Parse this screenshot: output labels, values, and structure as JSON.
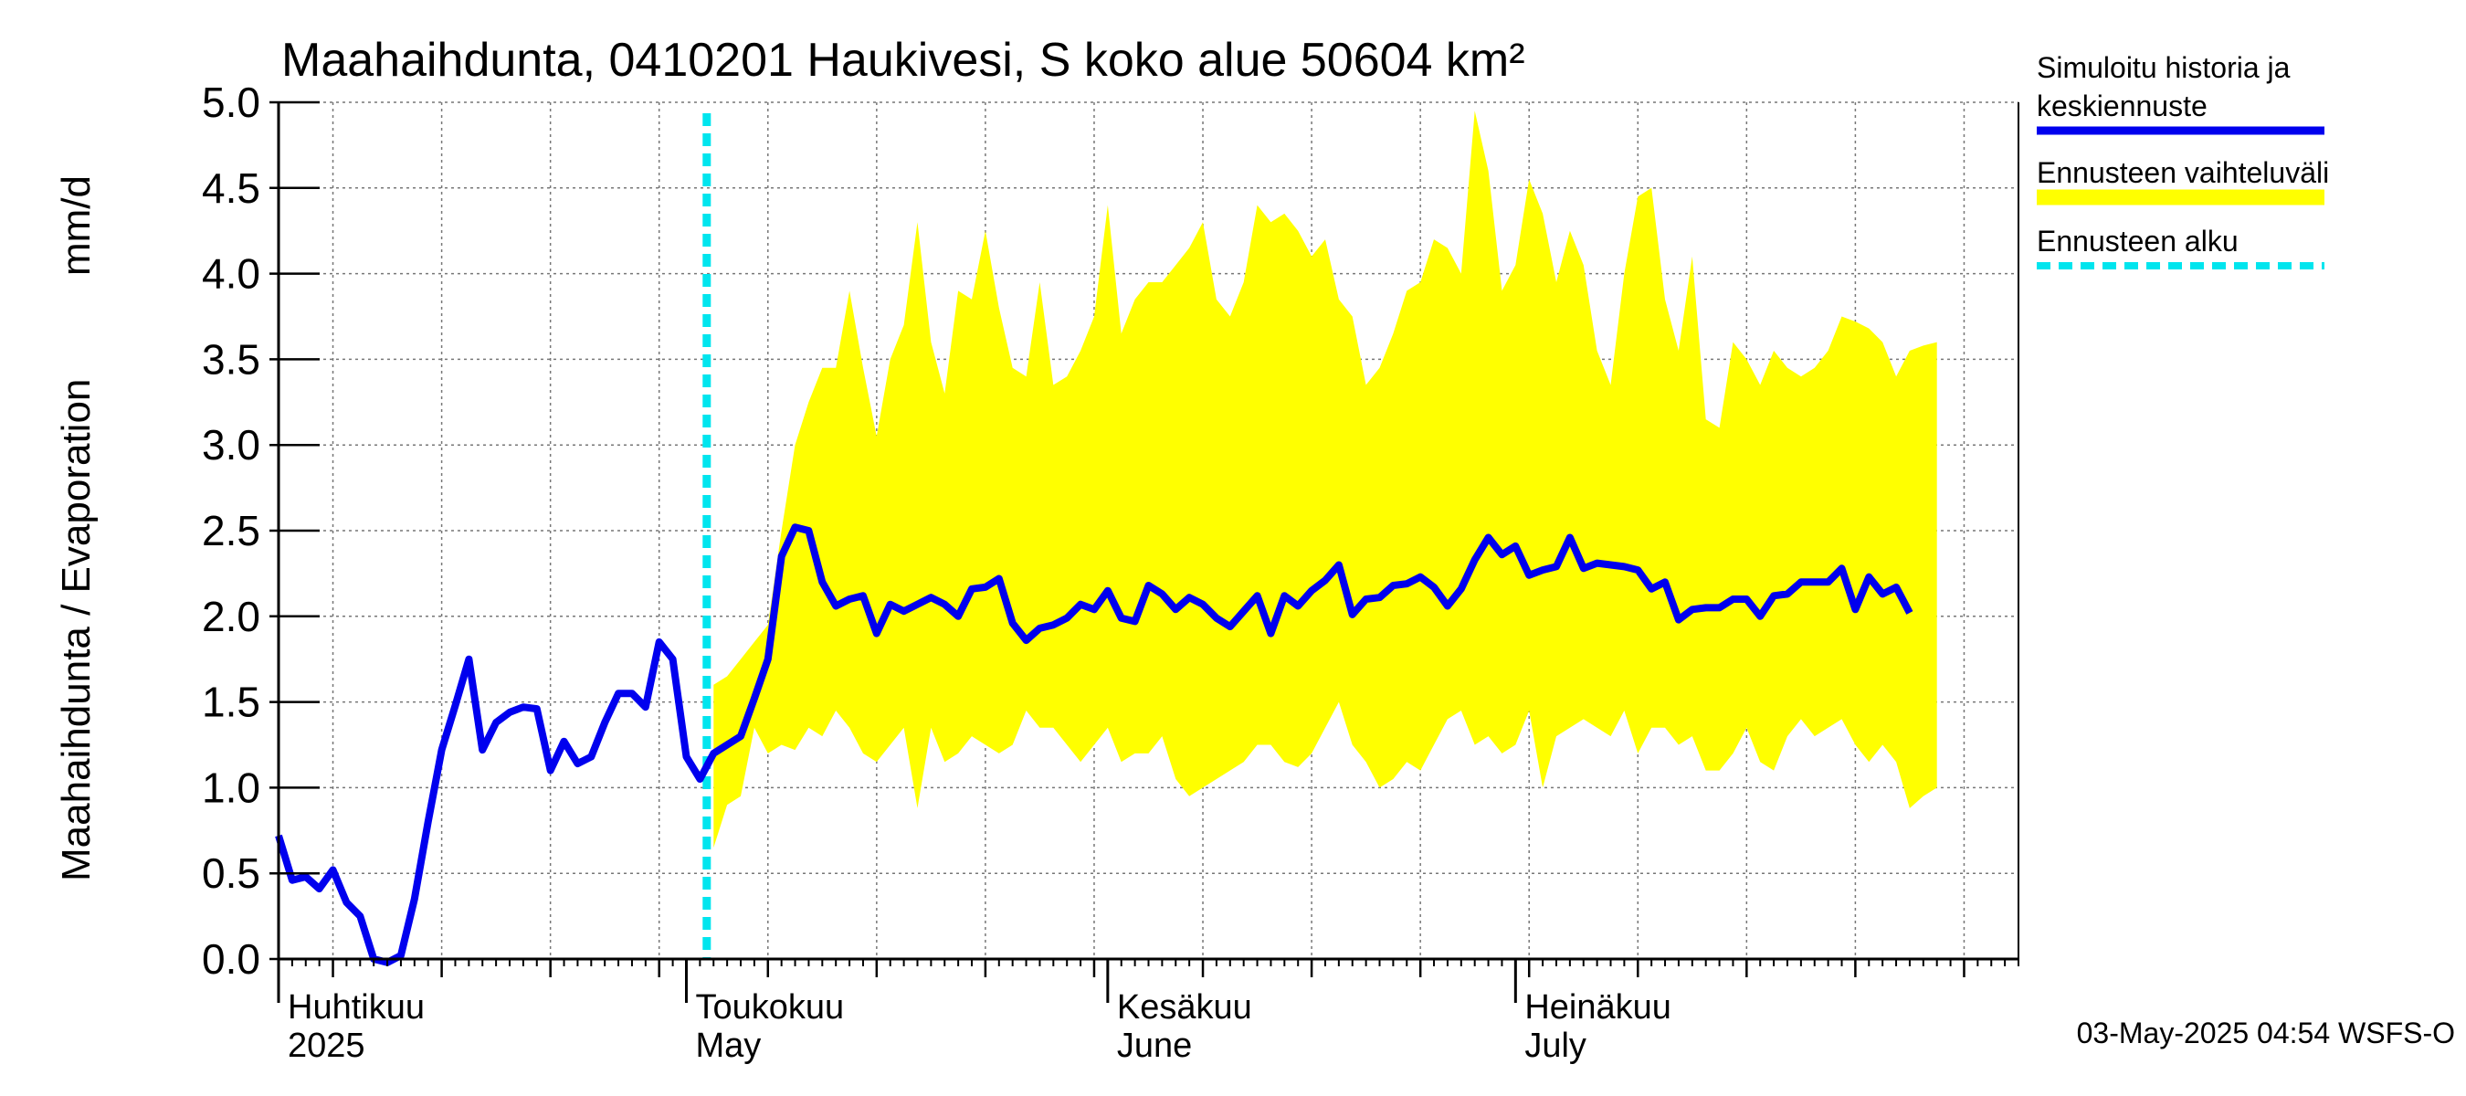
{
  "chart_data": {
    "type": "area",
    "title": "Maahaihdunta, 0410201 Haukivesi, S koko alue 50604 km²",
    "ylabel_left": "Maahaihdunta / Evaporation",
    "ylabel_unit": "mm/d",
    "ylim": [
      0,
      5
    ],
    "y_ticks": [
      "0.0",
      "0.5",
      "1.0",
      "1.5",
      "2.0",
      "2.5",
      "3.0",
      "3.5",
      "4.0",
      "4.5",
      "5.0"
    ],
    "x_start_day": 0,
    "x_end_day": 128,
    "forecast_start_day": 32,
    "months": [
      {
        "fi": "Huhtikuu",
        "en": "2025",
        "day": 0
      },
      {
        "fi": "Toukokuu",
        "en": "May",
        "day": 30
      },
      {
        "fi": "Kesäkuu",
        "en": "June",
        "day": 61
      },
      {
        "fi": "Heinäkuu",
        "en": "July",
        "day": 91
      }
    ],
    "legend": {
      "simulated_line1": "Simuloitu historia ja",
      "simulated_line2": "keskiennuste",
      "range": "Ennusteen vaihteluväli",
      "start": "Ennusteen alku"
    },
    "colors": {
      "simulated": "#0000ee",
      "range": "#ffff00",
      "start": "#00e5ee"
    },
    "footer": "03-May-2025 04:54 WSFS-O",
    "series": [
      {
        "name": "Simuloitu historia ja keskiennuste",
        "day0": 0,
        "values": [
          0.72,
          0.46,
          0.48,
          0.41,
          0.52,
          0.33,
          0.25,
          0.0,
          -0.02,
          0.02,
          0.35,
          0.8,
          1.22,
          1.48,
          1.75,
          1.22,
          1.38,
          1.44,
          1.47,
          1.46,
          1.1,
          1.27,
          1.14,
          1.18,
          1.38,
          1.55,
          1.55,
          1.47,
          1.85,
          1.75,
          1.18,
          1.05,
          1.2,
          1.25,
          1.3,
          1.52,
          1.75,
          2.35,
          2.52,
          2.5,
          2.2,
          2.06,
          2.1,
          2.12,
          1.9,
          2.07,
          2.03,
          2.07,
          2.11,
          2.07,
          2.0,
          2.16,
          2.17,
          2.22,
          1.96,
          1.86,
          1.93,
          1.95,
          1.99,
          2.07,
          2.04,
          2.15,
          1.99,
          1.97,
          2.18,
          2.13,
          2.04,
          2.11,
          2.07,
          1.99,
          1.94,
          2.03,
          2.12,
          1.9,
          2.12,
          2.06,
          2.15,
          2.21,
          2.3,
          2.01,
          2.1,
          2.11,
          2.18,
          2.19,
          2.23,
          2.17,
          2.06,
          2.16,
          2.33,
          2.46,
          2.36,
          2.41,
          2.24,
          2.27,
          2.29,
          2.46,
          2.28,
          2.31,
          2.3,
          2.29,
          2.27,
          2.16,
          2.2,
          1.98,
          2.04,
          2.05,
          2.05,
          2.1,
          2.1,
          2.0,
          2.12,
          2.13,
          2.2,
          2.2,
          2.2,
          2.28,
          2.04,
          2.23,
          2.13,
          2.17,
          2.02
        ]
      },
      {
        "name": "Ennusteen vaihteluväli (upper)",
        "day0": 32,
        "values": [
          1.6,
          1.65,
          1.75,
          1.85,
          1.95,
          2.5,
          3.0,
          3.25,
          3.45,
          3.45,
          3.9,
          3.45,
          3.05,
          3.5,
          3.7,
          4.3,
          3.6,
          3.3,
          3.9,
          3.85,
          4.25,
          3.8,
          3.45,
          3.4,
          3.95,
          3.35,
          3.4,
          3.55,
          3.75,
          4.4,
          3.65,
          3.85,
          3.95,
          3.95,
          4.05,
          4.15,
          4.3,
          3.85,
          3.75,
          3.95,
          4.4,
          4.3,
          4.35,
          4.25,
          4.1,
          4.2,
          3.85,
          3.75,
          3.35,
          3.45,
          3.65,
          3.9,
          3.95,
          4.2,
          4.15,
          4.0,
          4.95,
          4.6,
          3.9,
          4.05,
          4.55,
          4.35,
          3.95,
          4.25,
          4.05,
          3.55,
          3.35,
          4.0,
          4.45,
          4.5,
          3.85,
          3.55,
          4.1,
          3.15,
          3.1,
          3.6,
          3.5,
          3.35,
          3.55,
          3.45,
          3.4,
          3.45,
          3.55,
          3.75,
          3.72,
          3.68,
          3.6,
          3.4,
          3.55,
          3.58,
          3.6
        ]
      },
      {
        "name": "Ennusteen vaihteluväli (lower)",
        "day0": 32,
        "values": [
          0.65,
          0.9,
          0.95,
          1.35,
          1.2,
          1.25,
          1.22,
          1.35,
          1.3,
          1.45,
          1.35,
          1.2,
          1.15,
          1.25,
          1.35,
          0.88,
          1.35,
          1.15,
          1.2,
          1.3,
          1.25,
          1.2,
          1.25,
          1.45,
          1.35,
          1.35,
          1.25,
          1.15,
          1.25,
          1.35,
          1.15,
          1.2,
          1.2,
          1.3,
          1.05,
          0.95,
          1.0,
          1.05,
          1.1,
          1.15,
          1.25,
          1.25,
          1.15,
          1.12,
          1.2,
          1.35,
          1.5,
          1.25,
          1.15,
          1.0,
          1.05,
          1.15,
          1.1,
          1.25,
          1.4,
          1.45,
          1.25,
          1.3,
          1.2,
          1.25,
          1.45,
          1.0,
          1.3,
          1.35,
          1.4,
          1.35,
          1.3,
          1.45,
          1.2,
          1.35,
          1.35,
          1.25,
          1.3,
          1.1,
          1.1,
          1.2,
          1.35,
          1.15,
          1.1,
          1.3,
          1.4,
          1.3,
          1.35,
          1.4,
          1.25,
          1.15,
          1.25,
          1.15,
          0.88,
          0.95,
          1.0
        ]
      }
    ]
  }
}
